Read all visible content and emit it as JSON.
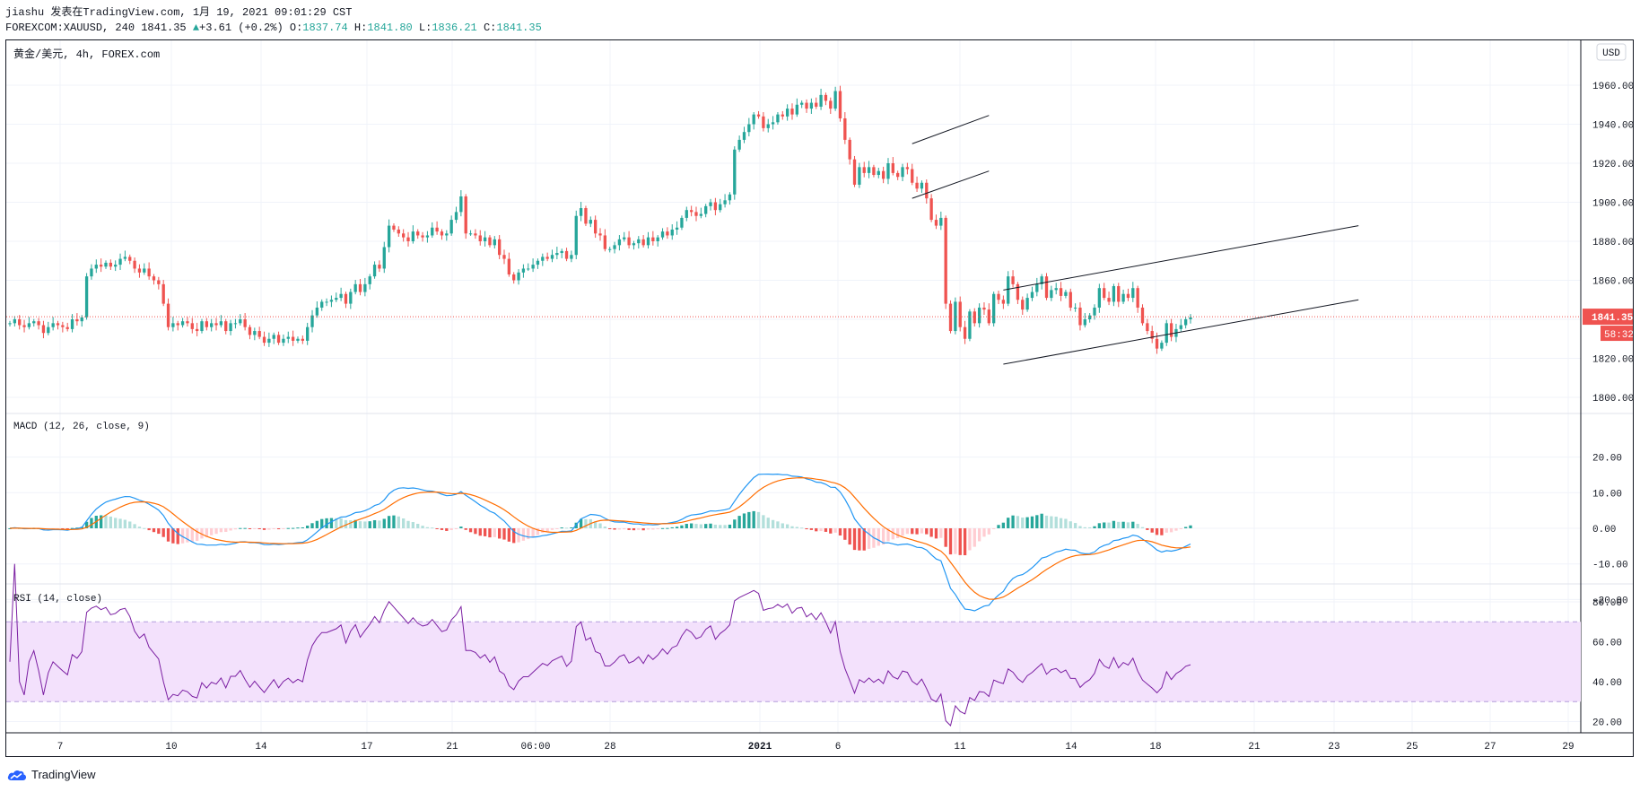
{
  "header": {
    "line1": "jiashu 发表在TradingView.com, 1月 19, 2021 09:01:29 CST",
    "symbol": "FOREXCOM:XAUUSD, 240 1841.35",
    "change": "+3.61 (+0.2%)",
    "o_label": " O:",
    "o_value": "1837.74",
    "h_label": " H:",
    "h_value": "1841.80",
    "l_label": " L:",
    "l_value": "1836.21",
    "c_label": " C:",
    "c_value": "1841.35"
  },
  "colors": {
    "up": "#26a69a",
    "down": "#ef5350",
    "macd_line": "#2196f3",
    "signal_line": "#ff6d00",
    "rsi_line": "#7b1fa2",
    "rsi_band": "#f3e1fc",
    "price_line": "#ef5350"
  },
  "chart_data": [
    {
      "type": "candlestick",
      "title": "黄金/美元, 4h, FOREX.com",
      "currency_button": "USD",
      "y_ticks": [
        "1960.00",
        "1940.00",
        "1920.00",
        "1900.00",
        "1880.00",
        "1860.00",
        "1840.00",
        "1820.00",
        "1800.00"
      ],
      "ylim": [
        1797,
        1974
      ],
      "x_ticks": [
        "7",
        "10",
        "14",
        "17",
        "21",
        "06:00",
        "28",
        "2021",
        "6",
        "11",
        "14",
        "18",
        "21",
        "23",
        "25",
        "27",
        "29"
      ],
      "last_price": "1841.35",
      "countdown": "58:32",
      "close_series": [
        1838,
        1840,
        1837,
        1836,
        1838,
        1839,
        1837,
        1833,
        1836,
        1838,
        1837,
        1836,
        1835,
        1840,
        1839,
        1841,
        1862,
        1866,
        1868,
        1867,
        1869,
        1867,
        1868,
        1871,
        1872,
        1870,
        1866,
        1864,
        1866,
        1862,
        1860,
        1858,
        1848,
        1836,
        1838,
        1837,
        1839,
        1838,
        1835,
        1834,
        1839,
        1836,
        1838,
        1837,
        1839,
        1834,
        1838,
        1838,
        1840,
        1836,
        1832,
        1834,
        1831,
        1828,
        1830,
        1832,
        1828,
        1830,
        1831,
        1829,
        1830,
        1829,
        1836,
        1842,
        1846,
        1849,
        1849,
        1850,
        1851,
        1853,
        1848,
        1854,
        1858,
        1854,
        1858,
        1862,
        1868,
        1866,
        1877,
        1888,
        1886,
        1884,
        1882,
        1880,
        1885,
        1883,
        1882,
        1883,
        1887,
        1885,
        1883,
        1884,
        1891,
        1895,
        1903,
        1884,
        1884,
        1883,
        1880,
        1882,
        1878,
        1881,
        1873,
        1871,
        1863,
        1860,
        1864,
        1866,
        1866,
        1868,
        1870,
        1872,
        1871,
        1873,
        1874,
        1875,
        1871,
        1873,
        1893,
        1897,
        1889,
        1891,
        1884,
        1883,
        1876,
        1876,
        1878,
        1881,
        1882,
        1878,
        1879,
        1881,
        1878,
        1882,
        1880,
        1882,
        1885,
        1883,
        1886,
        1887,
        1892,
        1896,
        1895,
        1893,
        1894,
        1898,
        1900,
        1896,
        1899,
        1901,
        1904,
        1927,
        1932,
        1936,
        1940,
        1945,
        1944,
        1938,
        1940,
        1941,
        1945,
        1944,
        1948,
        1945,
        1950,
        1951,
        1948,
        1951,
        1949,
        1955,
        1952,
        1948,
        1957,
        1943,
        1932,
        1922,
        1909,
        1918,
        1915,
        1918,
        1914,
        1916,
        1912,
        1920,
        1915,
        1913,
        1918,
        1917,
        1910,
        1907,
        1910,
        1902,
        1891,
        1888,
        1892,
        1848,
        1834,
        1849,
        1836,
        1830,
        1844,
        1838,
        1846,
        1845,
        1838,
        1853,
        1850,
        1848,
        1862,
        1858,
        1850,
        1845,
        1851,
        1854,
        1858,
        1862,
        1851,
        1855,
        1856,
        1852,
        1854,
        1846,
        1846,
        1837,
        1840,
        1842,
        1846,
        1856,
        1851,
        1849,
        1857,
        1849,
        1853,
        1851,
        1856,
        1846,
        1838,
        1834,
        1830,
        1825,
        1828,
        1838,
        1831,
        1835,
        1837,
        1840,
        1841
      ]
    },
    {
      "type": "line",
      "title": "MACD (12, 26, close, 9)",
      "y_ticks": [
        "20.00",
        "10.00",
        "0.00",
        "-10.00",
        "-20.00"
      ],
      "ylim": [
        -25,
        22
      ],
      "series": [
        {
          "values_from": "macd, signal and histogram computed from close_series"
        }
      ]
    },
    {
      "type": "line",
      "title": "RSI (14, close)",
      "y_ticks": [
        "80.00",
        "60.00",
        "40.00",
        "20.00"
      ],
      "ylim": [
        15,
        85
      ],
      "bands": [
        30,
        70
      ]
    }
  ]
}
